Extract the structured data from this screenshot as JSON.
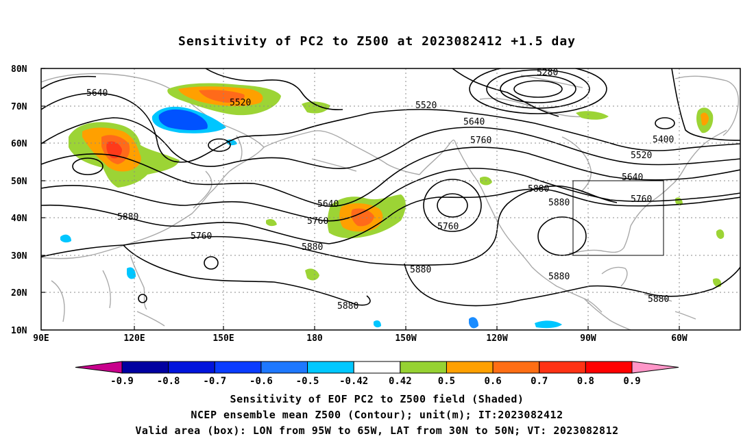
{
  "title": "Sensitivity of PC2 to Z500 at 2023082412 +1.5 day",
  "map": {
    "projection": "cylindrical",
    "lon_range": [
      "90E",
      "40W"
    ],
    "lat_range": [
      "10N",
      "80N"
    ],
    "lat_labels": [
      "80N",
      "70N",
      "60N",
      "50N",
      "40N",
      "30N",
      "20N",
      "10N"
    ],
    "lon_labels": [
      "90E",
      "120E",
      "150E",
      "180",
      "150W",
      "120W",
      "90W",
      "60W"
    ],
    "valid_box": {
      "lon": [
        "95W",
        "65W"
      ],
      "lat": [
        "30N",
        "50N"
      ]
    },
    "contour_labels": [
      "5280",
      "5520",
      "5520",
      "5640",
      "5640",
      "5760",
      "5400",
      "5520",
      "5640",
      "5760",
      "5880",
      "5640",
      "5760",
      "5880",
      "5880",
      "5760",
      "5880",
      "5880",
      "5880",
      "5880",
      "5760",
      "5880"
    ],
    "colors": {
      "green": "#9cd435",
      "orange": "#ffa000",
      "dark_orange": "#ff6a1a",
      "red_orange": "#ff3a1a",
      "blue": "#0052ff",
      "light_blue": "#00c6ff",
      "mid_blue": "#1a8cff",
      "coast": "#a8a8a8",
      "contour": "#000000"
    }
  },
  "colorbar": {
    "labels": [
      "-0.9",
      "-0.8",
      "-0.7",
      "-0.6",
      "-0.5",
      "-0.42",
      "0.42",
      "0.5",
      "0.6",
      "0.7",
      "0.8",
      "0.9"
    ],
    "colors": [
      "#c8008c",
      "#0000a0",
      "#0014dc",
      "#0a3cff",
      "#1e78ff",
      "#00c8ff",
      "#ffffff",
      "#96d232",
      "#ffa000",
      "#ff6e14",
      "#ff3214",
      "#ff0000",
      "#ff96c8"
    ]
  },
  "caption": {
    "line1": "Sensitivity of EOF PC2 to Z500 field (Shaded)",
    "line2": "NCEP ensemble mean Z500 (Contour); unit(m); IT:2023082412",
    "line3": "Valid area (box): LON from 95W to 65W, LAT from 30N to 50N; VT: 2023082812"
  }
}
